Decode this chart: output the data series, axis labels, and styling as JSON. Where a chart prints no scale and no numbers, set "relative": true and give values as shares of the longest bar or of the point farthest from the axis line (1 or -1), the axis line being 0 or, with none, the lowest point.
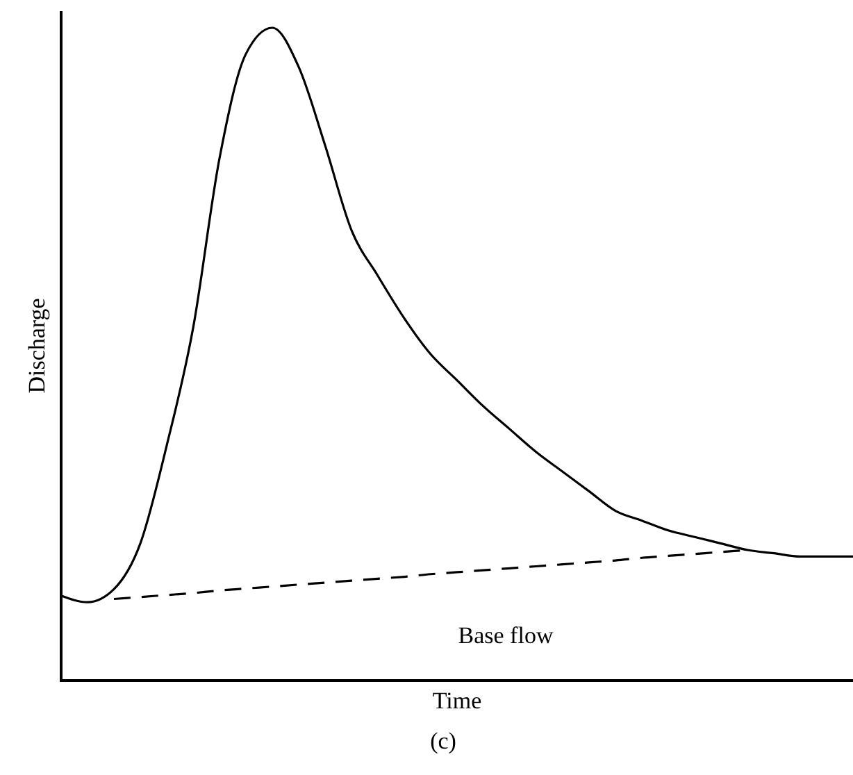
{
  "chart_data": {
    "type": "line",
    "relative": true,
    "xlabel": "Time",
    "ylabel": "Discharge",
    "annotations": [
      "Base flow",
      "(c)"
    ],
    "categories": [
      null,
      null,
      null,
      null,
      null,
      null,
      null,
      null,
      null,
      null,
      null,
      null,
      null,
      null,
      null,
      null,
      null,
      null,
      null,
      null,
      null,
      null,
      null,
      null,
      null,
      null,
      null,
      null,
      null,
      null,
      null
    ],
    "series": [
      {
        "color": "#000000",
        "line_style": "solid",
        "values": [
          0.13,
          0.12,
          0.14,
          0.21,
          0.36,
          0.54,
          0.8,
          0.96,
          1.0,
          0.94,
          0.82,
          0.69,
          0.62,
          0.555,
          0.5,
          0.46,
          0.42,
          0.385,
          0.35,
          0.32,
          0.29,
          0.26,
          0.245,
          0.23,
          0.22,
          0.21,
          0.2,
          0.195,
          0.19,
          0.19,
          0.19
        ]
      },
      {
        "color": "#000000",
        "line_style": "dashed",
        "values": [
          null,
          null,
          0.125,
          0.128,
          0.131,
          0.134,
          0.138,
          0.141,
          0.144,
          0.147,
          0.15,
          0.153,
          0.156,
          0.159,
          0.163,
          0.166,
          0.169,
          0.172,
          0.175,
          0.178,
          0.181,
          0.184,
          0.188,
          0.191,
          0.194,
          0.197,
          0.2,
          null,
          null,
          null,
          null
        ]
      }
    ]
  }
}
